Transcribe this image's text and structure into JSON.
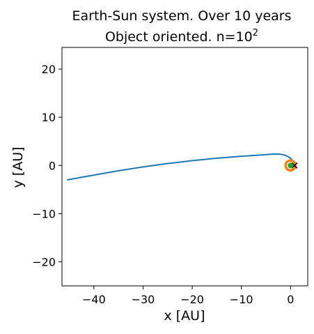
{
  "chart_data": {
    "type": "line",
    "title_line1": "Earth-Sun system. Over 10 years",
    "title_line2_prefix": "Object oriented. n=10",
    "title_line2_exponent": "2",
    "xlabel": "x [AU]",
    "ylabel": "y [AU]",
    "xlim": [
      -46.5,
      3.5
    ],
    "ylim": [
      -25,
      24.5
    ],
    "xticks": [
      -40,
      -30,
      -20,
      -10,
      0
    ],
    "yticks": [
      -20,
      -10,
      0,
      10,
      20
    ],
    "xtick_labels": [
      "−40",
      "−30",
      "−20",
      "−10",
      "0"
    ],
    "ytick_labels": [
      "−20",
      "−10",
      "0",
      "10",
      "20"
    ],
    "grid": false,
    "series": [
      {
        "color": "#1f77b4",
        "x": [
          -45.5,
          -40,
          -35,
          -30,
          -25,
          -20,
          -15,
          -10,
          -7,
          -5,
          -3.5,
          -2.2,
          -1.2,
          -0.4,
          0.2,
          0.6,
          0.8
        ],
        "y": [
          -3.0,
          -2.0,
          -1.1,
          -0.3,
          0.4,
          1.0,
          1.5,
          1.9,
          2.1,
          2.25,
          2.35,
          2.35,
          2.15,
          1.8,
          1.3,
          0.7,
          0.15
        ]
      }
    ],
    "orbit": {
      "color": "#ff7f0e",
      "center": [
        0,
        0
      ],
      "radius": 1
    },
    "markers": [
      {
        "name": "sun",
        "symbol": "x",
        "x": 0.8,
        "y": 0.0,
        "color": "#000000"
      },
      {
        "name": "earth",
        "symbol": "circle",
        "x": 0.0,
        "y": 0.0,
        "color": "#2ca02c"
      }
    ]
  }
}
